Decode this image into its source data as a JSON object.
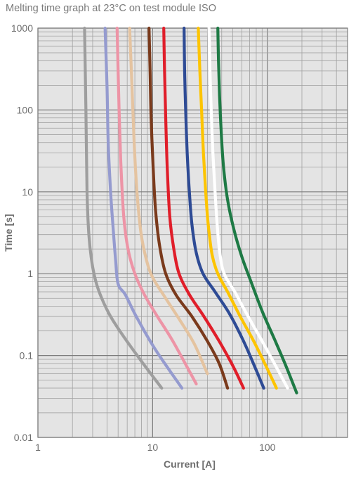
{
  "chart_data": {
    "type": "line",
    "title": "Melting time graph at 23°C on test module ISO",
    "xlabel": "Current [A]",
    "ylabel": "Time [s]",
    "x_scale": "log",
    "y_scale": "log",
    "xlim": [
      1,
      500
    ],
    "ylim": [
      0.01,
      1000
    ],
    "x_tick_labels": [
      "1",
      "10",
      "100"
    ],
    "y_tick_labels": [
      "1000",
      "100",
      "10",
      "1",
      "0.1",
      "0.01"
    ],
    "grid": true,
    "legend": "none",
    "series": [
      {
        "color": "#9e9e9e",
        "points": [
          [
            2.55,
            1000
          ],
          [
            2.62,
            100
          ],
          [
            2.68,
            10
          ],
          [
            2.78,
            3
          ],
          [
            2.95,
            1.4
          ],
          [
            3.2,
            0.8
          ],
          [
            3.6,
            0.5
          ],
          [
            4.3,
            0.3
          ],
          [
            5.6,
            0.17
          ],
          [
            8,
            0.085
          ],
          [
            12,
            0.04
          ]
        ]
      },
      {
        "color": "#959bcf",
        "points": [
          [
            3.85,
            1000
          ],
          [
            4.0,
            200
          ],
          [
            4.1,
            40
          ],
          [
            4.3,
            10
          ],
          [
            4.5,
            4
          ],
          [
            4.75,
            1.5
          ],
          [
            5.0,
            0.75
          ],
          [
            5.8,
            0.55
          ],
          [
            7.2,
            0.3
          ],
          [
            10.5,
            0.12
          ],
          [
            18,
            0.04
          ]
        ]
      },
      {
        "color": "#ed94a6",
        "points": [
          [
            4.9,
            1000
          ],
          [
            5.1,
            100
          ],
          [
            5.3,
            20
          ],
          [
            5.6,
            5
          ],
          [
            6.1,
            2
          ],
          [
            7.0,
            1
          ],
          [
            8.5,
            0.55
          ],
          [
            11,
            0.3
          ],
          [
            15,
            0.15
          ],
          [
            24,
            0.045
          ]
        ]
      },
      {
        "color": "#e4c3a0",
        "points": [
          [
            6.3,
            1000
          ],
          [
            6.6,
            200
          ],
          [
            6.9,
            40
          ],
          [
            7.3,
            10
          ],
          [
            7.9,
            3.2
          ],
          [
            8.8,
            1.5
          ],
          [
            10,
            0.9
          ],
          [
            13,
            0.5
          ],
          [
            17,
            0.28
          ],
          [
            23,
            0.14
          ],
          [
            30,
            0.06
          ]
        ]
      },
      {
        "color": "#7a3a1c",
        "points": [
          [
            9.3,
            1000
          ],
          [
            9.5,
            300
          ],
          [
            9.7,
            80
          ],
          [
            10.1,
            20
          ],
          [
            10.6,
            6
          ],
          [
            11.5,
            2.2
          ],
          [
            13,
            1
          ],
          [
            16,
            0.55
          ],
          [
            22,
            0.3
          ],
          [
            30,
            0.15
          ],
          [
            38,
            0.08
          ],
          [
            45,
            0.04
          ]
        ]
      },
      {
        "color": "#e01e2a",
        "points": [
          [
            12.5,
            1000
          ],
          [
            12.7,
            300
          ],
          [
            13,
            80
          ],
          [
            13.4,
            20
          ],
          [
            14.1,
            5
          ],
          [
            15.3,
            2
          ],
          [
            17,
            1
          ],
          [
            21,
            0.55
          ],
          [
            28,
            0.3
          ],
          [
            38,
            0.15
          ],
          [
            50,
            0.075
          ],
          [
            62,
            0.04
          ]
        ]
      },
      {
        "color": "#2e4b95",
        "points": [
          [
            18.8,
            1000
          ],
          [
            19,
            300
          ],
          [
            19.4,
            100
          ],
          [
            20,
            30
          ],
          [
            20.9,
            10
          ],
          [
            22,
            4
          ],
          [
            24,
            1.8
          ],
          [
            27.5,
            1
          ],
          [
            35,
            0.6
          ],
          [
            47,
            0.32
          ],
          [
            62,
            0.15
          ],
          [
            77,
            0.075
          ],
          [
            93,
            0.04
          ]
        ]
      },
      {
        "color": "#fdc400",
        "points": [
          [
            25,
            1000
          ],
          [
            25.8,
            300
          ],
          [
            26.7,
            100
          ],
          [
            27.7,
            30
          ],
          [
            29,
            10
          ],
          [
            30.5,
            4
          ],
          [
            33,
            1.7
          ],
          [
            37,
            1
          ],
          [
            45,
            0.6
          ],
          [
            58,
            0.3
          ],
          [
            76,
            0.15
          ],
          [
            97,
            0.075
          ],
          [
            120,
            0.04
          ]
        ]
      },
      {
        "color": "#ffffff",
        "points": [
          [
            31,
            1000
          ],
          [
            31.6,
            300
          ],
          [
            32.4,
            100
          ],
          [
            33.5,
            30
          ],
          [
            35,
            10
          ],
          [
            36.5,
            4
          ],
          [
            38.5,
            1.8
          ],
          [
            42,
            1
          ],
          [
            52,
            0.6
          ],
          [
            68,
            0.3
          ],
          [
            90,
            0.15
          ],
          [
            118,
            0.075
          ],
          [
            150,
            0.04
          ]
        ]
      },
      {
        "color": "#1e7a45",
        "points": [
          [
            37,
            1000
          ],
          [
            37.5,
            400
          ],
          [
            38.3,
            150
          ],
          [
            39.7,
            50
          ],
          [
            41.5,
            20
          ],
          [
            45,
            8
          ],
          [
            51,
            3.5
          ],
          [
            60,
            1.6
          ],
          [
            72,
            0.8
          ],
          [
            90,
            0.35
          ],
          [
            115,
            0.16
          ],
          [
            145,
            0.075
          ],
          [
            180,
            0.035
          ]
        ]
      }
    ]
  }
}
